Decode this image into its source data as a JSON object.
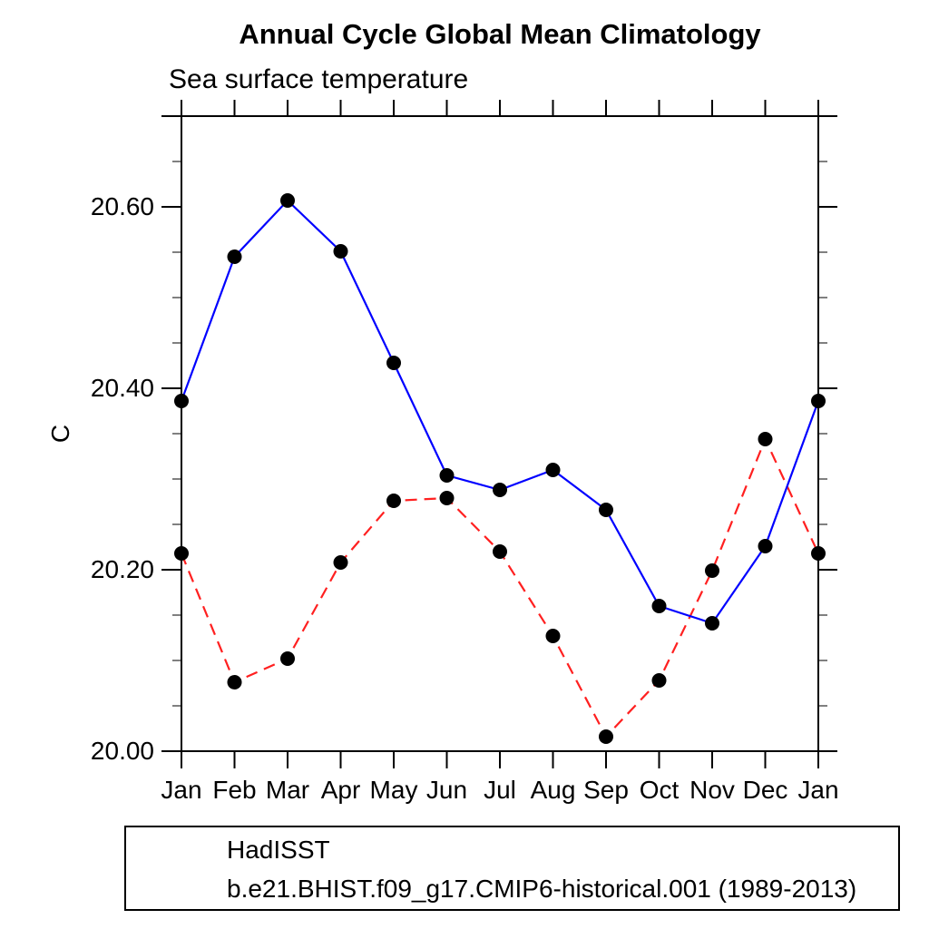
{
  "chart_data": {
    "type": "line",
    "title": "Annual Cycle Global Mean Climatology",
    "subtitle": "Sea surface temperature",
    "ylabel": "C",
    "xlabel": "",
    "categories": [
      "Jan",
      "Feb",
      "Mar",
      "Apr",
      "May",
      "Jun",
      "Jul",
      "Aug",
      "Sep",
      "Oct",
      "Nov",
      "Dec",
      "Jan"
    ],
    "series": [
      {
        "name": "HadISST",
        "color": "#0000ff",
        "line_style": "solid",
        "marker": "filled-circle",
        "marker_color": "#000000",
        "values": [
          20.386,
          20.545,
          20.607,
          20.551,
          20.428,
          20.304,
          20.288,
          20.31,
          20.266,
          20.16,
          20.141,
          20.226,
          20.386
        ]
      },
      {
        "name": "b.e21.BHIST.f09_g17.CMIP6-historical.001 (1989-2013)",
        "color": "#ff2020",
        "line_style": "dashed",
        "marker": "filled-circle",
        "marker_color": "#000000",
        "values": [
          20.218,
          20.076,
          20.102,
          20.208,
          20.276,
          20.279,
          20.22,
          20.127,
          20.016,
          20.078,
          20.199,
          20.344,
          20.218
        ]
      }
    ],
    "ylim": [
      20.0,
      20.7
    ],
    "yticks_major": {
      "values": [
        20.0,
        20.2,
        20.4,
        20.6
      ],
      "labels": [
        "20.00",
        "20.20",
        "20.40",
        "20.60"
      ]
    },
    "ytick_minor_step": 0.05,
    "grid": false,
    "legend_position": "bottom-left-box",
    "axis_color": "#000000",
    "minor_tick_color": "#808080"
  }
}
